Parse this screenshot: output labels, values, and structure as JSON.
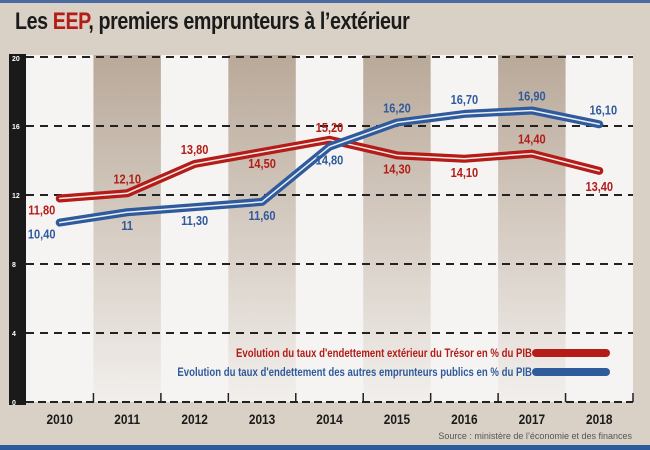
{
  "title": {
    "prefix": "Les ",
    "highlight": "EEP",
    "suffix": ", premiers emprunteurs à l’extérieur"
  },
  "source": "Source : ministère de l’économie et des finances",
  "colors": {
    "red": "#b31c17",
    "blue": "#2f5a9c",
    "shade": "#c6b8a8",
    "background": "#d9d1c6",
    "plot": "#f5f4f3"
  },
  "chart_data": {
    "type": "line",
    "title": "Les EEP, premiers emprunteurs à l’extérieur",
    "categories": [
      "2010",
      "2011",
      "2012",
      "2013",
      "2014",
      "2015",
      "2016",
      "2017",
      "2018"
    ],
    "ylim": [
      0,
      20
    ],
    "yticks": [
      "0",
      "4",
      "8",
      "12",
      "16",
      "20"
    ],
    "grid": true,
    "legend_position": "bottom-right",
    "series": [
      {
        "name": "Evolution du taux d'endettement extérieur du Trésor en % du PIB",
        "color": "#b31c17",
        "values": [
          11.8,
          12.1,
          13.8,
          14.5,
          15.2,
          14.3,
          14.1,
          14.4,
          13.4
        ],
        "labels": [
          "11,80",
          "12,10",
          "13,80",
          "14,50",
          "15,20",
          "14,30",
          "14,10",
          "14,40",
          "13,40"
        ]
      },
      {
        "name": "Evolution du taux d'endettement des autres emprunteurs publics en % du PIB",
        "color": "#2f5a9c",
        "values": [
          10.4,
          11,
          11.3,
          11.6,
          14.8,
          16.2,
          16.7,
          16.9,
          16.1
        ],
        "labels": [
          "10,40",
          "11",
          "11,30",
          "11,60",
          "14,80",
          "16,20",
          "16,70",
          "16,90",
          "16,10"
        ]
      }
    ]
  }
}
